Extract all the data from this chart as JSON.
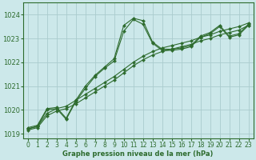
{
  "title": "Graphe pression niveau de la mer (hPa)",
  "bg_color": "#cce8ea",
  "grid_color": "#aaccce",
  "line_color": "#2d6b2d",
  "xlim": [
    -0.5,
    23.5
  ],
  "ylim": [
    1018.8,
    1024.5
  ],
  "yticks": [
    1019,
    1020,
    1021,
    1022,
    1023,
    1024
  ],
  "xticks": [
    0,
    1,
    2,
    3,
    4,
    5,
    6,
    7,
    8,
    9,
    10,
    11,
    12,
    13,
    14,
    15,
    16,
    17,
    18,
    19,
    20,
    21,
    22,
    23
  ],
  "series": [
    {
      "x": [
        0,
        1,
        2,
        3,
        4,
        5,
        6,
        7,
        8,
        9,
        10,
        11,
        12,
        13,
        14,
        15,
        16,
        17,
        18,
        19,
        20,
        21,
        22,
        23
      ],
      "y": [
        1019.25,
        1019.35,
        1020.05,
        1020.1,
        1019.65,
        1020.4,
        1021.0,
        1021.45,
        1021.8,
        1022.15,
        1023.55,
        1023.85,
        1023.75,
        1022.85,
        1022.55,
        1022.55,
        1022.6,
        1022.7,
        1023.1,
        1023.25,
        1023.55,
        1023.1,
        1023.2,
        1023.6
      ]
    },
    {
      "x": [
        0,
        1,
        2,
        3,
        4,
        5,
        6,
        7,
        8,
        9,
        10,
        11,
        12,
        13,
        14,
        15,
        16,
        17,
        18,
        19,
        20,
        21,
        22,
        23
      ],
      "y": [
        1019.2,
        1019.3,
        1020.0,
        1020.05,
        1019.6,
        1020.35,
        1020.9,
        1021.4,
        1021.75,
        1022.05,
        1023.3,
        1023.8,
        1023.6,
        1022.8,
        1022.5,
        1022.5,
        1022.55,
        1022.65,
        1023.05,
        1023.2,
        1023.5,
        1023.05,
        1023.15,
        1023.55
      ]
    },
    {
      "x": [
        0,
        1,
        2,
        3,
        4,
        5,
        6,
        7,
        8,
        9,
        10,
        11,
        12,
        13,
        14,
        15,
        16,
        17,
        18,
        19,
        20,
        21,
        22,
        23
      ],
      "y": [
        1019.15,
        1019.25,
        1019.75,
        1019.95,
        1020.05,
        1020.25,
        1020.5,
        1020.75,
        1021.0,
        1021.25,
        1021.55,
        1021.85,
        1022.1,
        1022.3,
        1022.45,
        1022.55,
        1022.65,
        1022.75,
        1022.9,
        1023.0,
        1023.15,
        1023.25,
        1023.35,
        1023.55
      ]
    },
    {
      "x": [
        0,
        1,
        2,
        3,
        4,
        5,
        6,
        7,
        8,
        9,
        10,
        11,
        12,
        13,
        14,
        15,
        16,
        17,
        18,
        19,
        20,
        21,
        22,
        23
      ],
      "y": [
        1019.2,
        1019.3,
        1019.85,
        1020.05,
        1020.15,
        1020.4,
        1020.65,
        1020.9,
        1021.15,
        1021.4,
        1021.7,
        1022.0,
        1022.25,
        1022.45,
        1022.6,
        1022.7,
        1022.8,
        1022.9,
        1023.05,
        1023.15,
        1023.3,
        1023.4,
        1023.5,
        1023.65
      ]
    }
  ],
  "title_fontsize": 6,
  "tick_fontsize": 5.5,
  "ytick_fontsize": 6,
  "marker_size": 2.2,
  "linewidth": 0.8
}
